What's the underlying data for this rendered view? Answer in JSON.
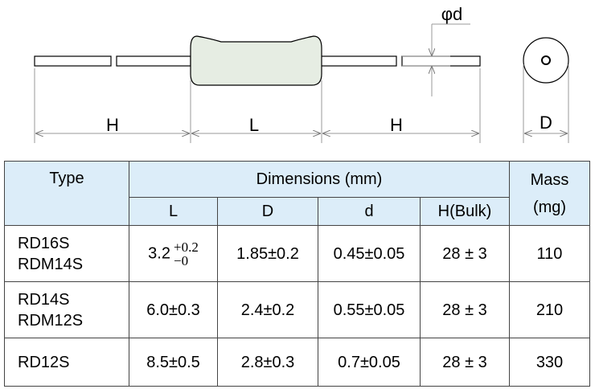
{
  "diagram": {
    "labels": {
      "h_left": "H",
      "l": "L",
      "h_right": "H",
      "d_outer": "D",
      "phi_d": "φd"
    }
  },
  "table": {
    "header": {
      "type": "Type",
      "dimensions": "Dimensions (mm)",
      "mass": [
        "Mass",
        "(mg)"
      ],
      "sub": [
        "L",
        "D",
        "d",
        "H(Bulk)"
      ]
    },
    "rows": [
      {
        "type": [
          "RD16S",
          "RDM14S"
        ],
        "L": {
          "base": "3.2",
          "plus": "+0.2",
          "minus": "−0"
        },
        "D": "1.85±0.2",
        "d": "0.45±0.05",
        "H": "28 ± 3",
        "mass": "110"
      },
      {
        "type": [
          "RD14S",
          "RDM12S"
        ],
        "L": "6.0±0.3",
        "D": "2.4±0.2",
        "d": "0.55±0.05",
        "H": "28 ± 3",
        "mass": "210"
      },
      {
        "type": [
          "RD12S"
        ],
        "L": "8.5±0.5",
        "D": "2.8±0.3",
        "d": "0.7±0.05",
        "H": "28 ± 3",
        "mass": "330"
      }
    ]
  }
}
